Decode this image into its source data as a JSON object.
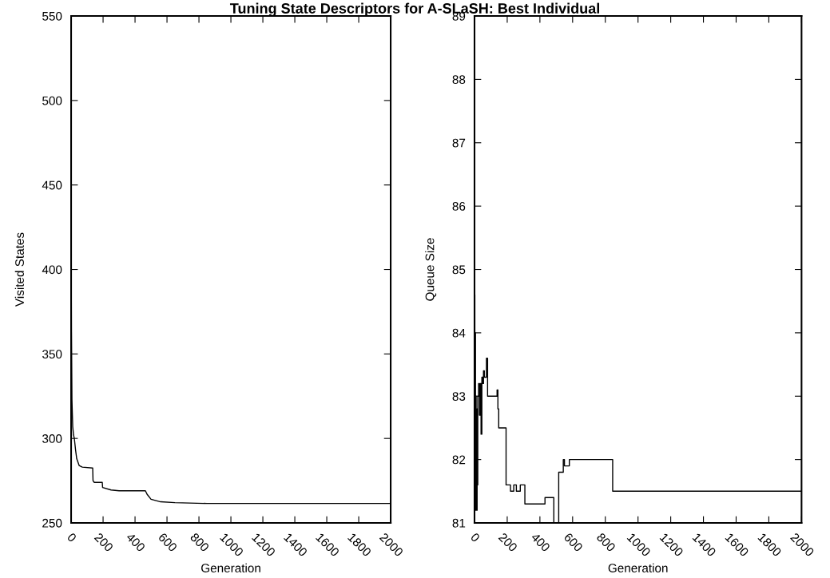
{
  "chart_data": [
    {
      "type": "line",
      "title": "Tuning State Descriptors for A-SLaSH: Best Individual",
      "xlabel": "Generation",
      "ylabel": "Visited States",
      "xlim": [
        0,
        2000
      ],
      "ylim": [
        250,
        550
      ],
      "xticks": [
        0,
        200,
        400,
        600,
        800,
        1000,
        1200,
        1400,
        1600,
        1800,
        2000
      ],
      "yticks": [
        250,
        300,
        350,
        400,
        450,
        500,
        550
      ],
      "grid": false,
      "legend": false,
      "series": [
        {
          "color": "#000000",
          "x": [
            0,
            2,
            5,
            10,
            15,
            20,
            28,
            35,
            50,
            70,
            135,
            137,
            145,
            195,
            197,
            250,
            300,
            465,
            475,
            500,
            560,
            650,
            850,
            2000
          ],
          "values": [
            424,
            363,
            323,
            307,
            302,
            300,
            293,
            288,
            284,
            283,
            282.5,
            275,
            274,
            274,
            271,
            269.5,
            269,
            269,
            267,
            264,
            262.5,
            262,
            261.5,
            261.5
          ]
        }
      ]
    },
    {
      "type": "step",
      "xlabel": "Generation",
      "ylabel": "Queue Size",
      "xlim": [
        0,
        2000
      ],
      "ylim": [
        81,
        89
      ],
      "xticks": [
        0,
        200,
        400,
        600,
        800,
        1000,
        1200,
        1400,
        1600,
        1800,
        2000
      ],
      "yticks": [
        81,
        82,
        83,
        84,
        85,
        86,
        87,
        88,
        89
      ],
      "grid": false,
      "legend": false,
      "series": [
        {
          "color": "#000000",
          "x": [
            0,
            2,
            4,
            6,
            8,
            10,
            12,
            14,
            16,
            18,
            20,
            25,
            30,
            35,
            40,
            45,
            50,
            55,
            60,
            73,
            80,
            138,
            143,
            148,
            193,
            220,
            240,
            256,
            280,
            308,
            431,
            485,
            515,
            543,
            550,
            580,
            845,
            2000
          ],
          "values": [
            84.6,
            81.6,
            84.0,
            81.2,
            83.0,
            81.9,
            82.3,
            81.2,
            82.8,
            81.6,
            83.0,
            83.2,
            82.7,
            83.2,
            82.4,
            83.3,
            83.2,
            83.4,
            83.3,
            83.6,
            83.0,
            83.1,
            82.8,
            82.5,
            81.6,
            81.5,
            81.6,
            81.5,
            81.6,
            81.3,
            81.4,
            81.0,
            81.8,
            82.0,
            81.9,
            82.0,
            81.5,
            81.5
          ]
        }
      ]
    }
  ]
}
